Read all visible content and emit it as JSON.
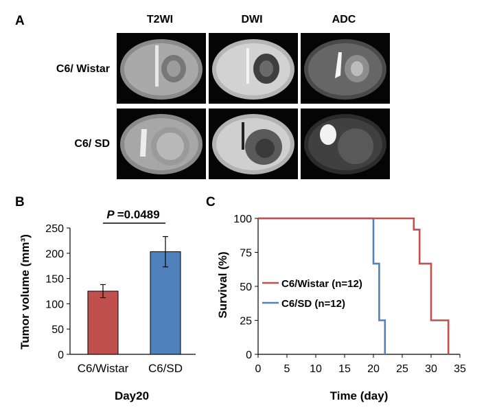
{
  "panel_a": {
    "letter": "A",
    "columns": [
      "T2WI",
      "DWI",
      "ADC"
    ],
    "rows": [
      "C6/ Wistar",
      "C6/ SD"
    ]
  },
  "panel_b": {
    "letter": "B",
    "p_label": "P",
    "p_value": "=0.0489"
  },
  "panel_c": {
    "letter": "C"
  },
  "chart_data": [
    {
      "type": "bar",
      "title": "",
      "categories": [
        "C6/Wistar",
        "C6/SD"
      ],
      "values": [
        125,
        203
      ],
      "errors": [
        13,
        30
      ],
      "colors": [
        "#c0504d",
        "#4f81bd"
      ],
      "ylabel": "Tumor volume (mm³)",
      "xlabel": "Day20",
      "ylim": [
        0,
        250
      ],
      "yticks": [
        "0",
        "50",
        "100",
        "150",
        "200",
        "250"
      ],
      "annotation": "P =0.0489"
    },
    {
      "type": "line",
      "subtype": "kaplan-meier",
      "title": "",
      "xlabel": "Time (day)",
      "ylabel": "Survival (%)",
      "xlim": [
        0,
        35
      ],
      "ylim": [
        0,
        100
      ],
      "xticks": [
        "0",
        "5",
        "10",
        "15",
        "20",
        "25",
        "30",
        "35"
      ],
      "yticks": [
        "0",
        "25",
        "50",
        "75",
        "100"
      ],
      "series": [
        {
          "name": "C6/Wistar (n=12)",
          "color": "#c0504d",
          "x": [
            0,
            27,
            27,
            28,
            28,
            30,
            30,
            33,
            33
          ],
          "y": [
            100,
            100,
            91.7,
            91.7,
            66.7,
            66.7,
            25,
            25,
            0
          ]
        },
        {
          "name": "C6/SD (n=12)",
          "color": "#4f81bd",
          "x": [
            0,
            20,
            20,
            21,
            21,
            22,
            22
          ],
          "y": [
            100,
            100,
            66.7,
            66.7,
            25,
            25,
            0
          ]
        }
      ]
    }
  ]
}
